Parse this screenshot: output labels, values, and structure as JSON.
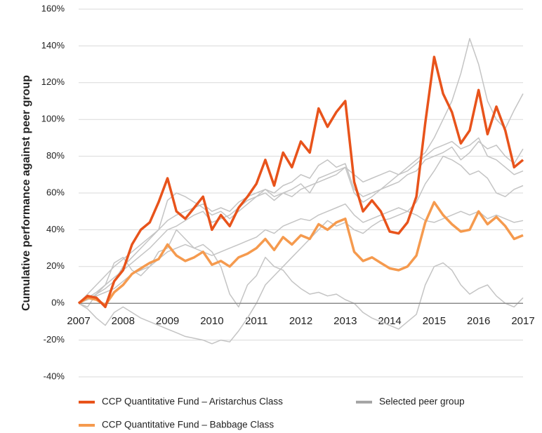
{
  "chart_data": {
    "type": "line",
    "y_label": "Cumulative performance  against peer group",
    "xlim": [
      2007,
      2017
    ],
    "xticks": [
      2007,
      2008,
      2009,
      2010,
      2011,
      2012,
      2013,
      2014,
      2015,
      2016,
      2017
    ],
    "ylim": [
      -40,
      160
    ],
    "yticks": [
      {
        "value": -40,
        "label": "-40%"
      },
      {
        "value": -20,
        "label": "-20%"
      },
      {
        "value": 0,
        "label": "0%"
      },
      {
        "value": 20,
        "label": "20%"
      },
      {
        "value": 40,
        "label": "40%"
      },
      {
        "value": 60,
        "label": "60%"
      },
      {
        "value": 80,
        "label": "80%"
      },
      {
        "value": 100,
        "label": "100%"
      },
      {
        "value": 120,
        "label": "120%"
      },
      {
        "value": 140,
        "label": "140%"
      },
      {
        "value": 160,
        "label": "160%"
      }
    ],
    "grid": true,
    "legend": "bottom",
    "x": [
      2007.0,
      2007.2,
      2007.4,
      2007.6,
      2007.8,
      2008.0,
      2008.2,
      2008.4,
      2008.6,
      2008.8,
      2009.0,
      2009.2,
      2009.4,
      2009.6,
      2009.8,
      2010.0,
      2010.2,
      2010.4,
      2010.6,
      2010.8,
      2011.0,
      2011.2,
      2011.4,
      2011.6,
      2011.8,
      2012.0,
      2012.2,
      2012.4,
      2012.6,
      2012.8,
      2013.0,
      2013.2,
      2013.4,
      2013.6,
      2013.8,
      2014.0,
      2014.2,
      2014.4,
      2014.6,
      2014.8,
      2015.0,
      2015.2,
      2015.4,
      2015.6,
      2015.8,
      2016.0,
      2016.2,
      2016.4,
      2016.6,
      2016.8,
      2017.0
    ],
    "series": [
      {
        "name": "CCP Quantitative Fund – Aristarchus Class",
        "color": "#e8531b",
        "values": [
          0,
          4,
          3,
          -2,
          12,
          18,
          32,
          40,
          44,
          55,
          68,
          50,
          46,
          52,
          58,
          40,
          48,
          42,
          52,
          58,
          65,
          78,
          64,
          82,
          74,
          88,
          82,
          106,
          96,
          104,
          110,
          66,
          50,
          56,
          50,
          39,
          38,
          44,
          58,
          98,
          134,
          114,
          104,
          87,
          94,
          116,
          92,
          107,
          94,
          74,
          78
        ]
      },
      {
        "name": "CCP Quantitative Fund – Babbage Class",
        "color": "#f59a4e",
        "values": [
          0,
          3,
          2,
          -1,
          6,
          10,
          16,
          19,
          22,
          24,
          32,
          26,
          23,
          25,
          28,
          21,
          23,
          20,
          25,
          27,
          30,
          35,
          29,
          36,
          32,
          37,
          35,
          43,
          40,
          44,
          46,
          28,
          23,
          25,
          22,
          19,
          18,
          20,
          26,
          44,
          55,
          48,
          43,
          39,
          40,
          50,
          43,
          47,
          42,
          35,
          37
        ]
      },
      {
        "name": "Selected peer group",
        "color": "#c4c4c4",
        "lines": [
          [
            0,
            2,
            5,
            8,
            12,
            20,
            25,
            30,
            35,
            40,
            45,
            48,
            50,
            52,
            54,
            50,
            52,
            50,
            55,
            58,
            60,
            62,
            58,
            60,
            62,
            65,
            60,
            68,
            70,
            72,
            74,
            70,
            66,
            68,
            70,
            72,
            70,
            74,
            78,
            82,
            90,
            100,
            110,
            125,
            144,
            130,
            110,
            100,
            95,
            105,
            114
          ],
          [
            0,
            -2,
            5,
            10,
            22,
            25,
            18,
            15,
            20,
            28,
            30,
            40,
            35,
            30,
            32,
            28,
            20,
            5,
            -2,
            10,
            15,
            25,
            20,
            18,
            12,
            8,
            5,
            6,
            4,
            5,
            2,
            0,
            -5,
            -8,
            -10,
            -12,
            -14,
            -10,
            -6,
            10,
            20,
            22,
            18,
            10,
            5,
            8,
            10,
            4,
            0,
            -2,
            3
          ],
          [
            0,
            -3,
            -8,
            -12,
            -5,
            -2,
            -5,
            -8,
            -10,
            -12,
            -14,
            -16,
            -18,
            -19,
            -20,
            -22,
            -20,
            -21,
            -15,
            -8,
            0,
            10,
            15,
            20,
            25,
            30,
            35,
            40,
            45,
            42,
            44,
            40,
            38,
            42,
            45,
            46,
            48,
            50,
            55,
            65,
            72,
            80,
            78,
            75,
            70,
            72,
            68,
            60,
            58,
            62,
            64
          ],
          [
            0,
            3,
            6,
            10,
            14,
            18,
            22,
            26,
            30,
            35,
            40,
            42,
            45,
            48,
            50,
            44,
            46,
            48,
            52,
            56,
            58,
            60,
            56,
            60,
            58,
            62,
            64,
            66,
            68,
            70,
            74,
            60,
            55,
            58,
            62,
            66,
            70,
            72,
            76,
            80,
            84,
            86,
            88,
            84,
            86,
            90,
            80,
            78,
            74,
            70,
            72
          ],
          [
            0,
            5,
            10,
            15,
            20,
            24,
            28,
            32,
            36,
            40,
            56,
            60,
            58,
            55,
            52,
            48,
            50,
            46,
            50,
            54,
            58,
            62,
            60,
            64,
            66,
            70,
            68,
            75,
            78,
            74,
            76,
            62,
            58,
            60,
            62,
            64,
            66,
            70,
            72,
            78,
            80,
            82,
            85,
            78,
            82,
            88,
            84,
            86,
            80,
            76,
            84
          ],
          [
            0,
            2,
            4,
            6,
            8,
            12,
            16,
            18,
            20,
            24,
            28,
            30,
            32,
            30,
            28,
            26,
            28,
            30,
            32,
            34,
            36,
            40,
            38,
            42,
            44,
            46,
            45,
            48,
            50,
            52,
            54,
            48,
            44,
            46,
            48,
            50,
            52,
            50,
            48,
            45,
            44,
            46,
            48,
            50,
            48,
            50,
            46,
            48,
            46,
            44,
            45
          ]
        ]
      }
    ]
  }
}
